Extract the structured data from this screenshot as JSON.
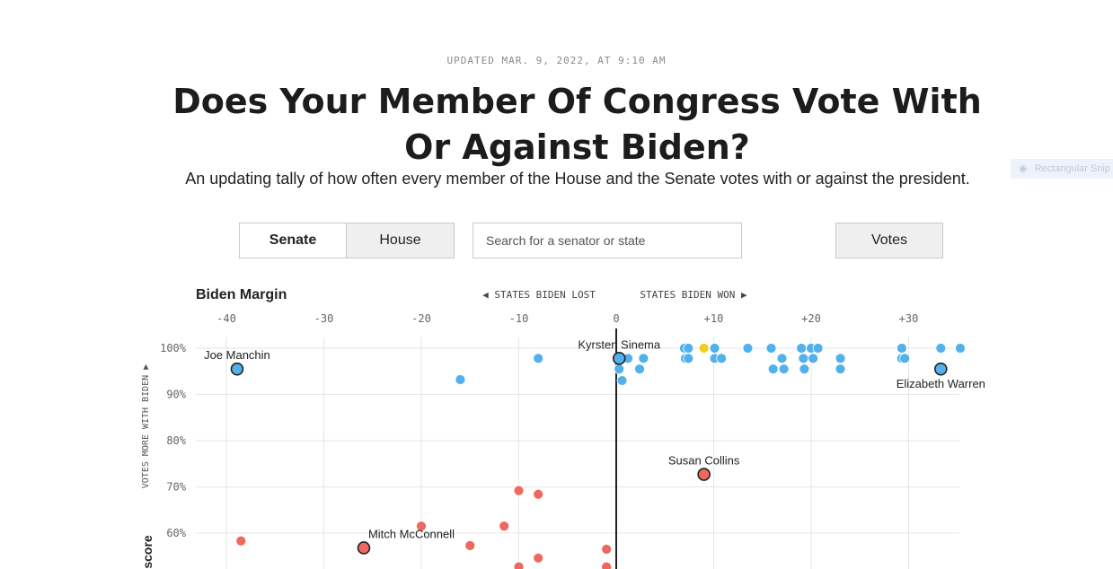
{
  "header": {
    "updated": "UPDATED MAR. 9, 2022, AT 9:10 AM",
    "title": "Does Your Member Of Congress Vote With Or Against Biden?",
    "subtitle": "An updating tally of how often every member of the House and the Senate votes with or against the president."
  },
  "overlay": {
    "snip_label": "Rectangular Snip"
  },
  "controls": {
    "senate_label": "Senate",
    "house_label": "House",
    "search_placeholder": "Search for a senator or state",
    "votes_label": "Votes"
  },
  "chart_data": {
    "type": "scatter",
    "title": "Biden Margin",
    "direction_left": "◀ STATES BIDEN LOST",
    "direction_right": "STATES BIDEN WON ▶",
    "ylabel": "VOTES MORE WITH BIDEN ▶",
    "ylabel_bottom": "score",
    "xlim": [
      -43,
      35
    ],
    "ylim": [
      50,
      102
    ],
    "x_ticks": [
      {
        "value": -40,
        "label": "-40"
      },
      {
        "value": -30,
        "label": "-30"
      },
      {
        "value": -20,
        "label": "-20"
      },
      {
        "value": -10,
        "label": "-10"
      },
      {
        "value": 0,
        "label": "0"
      },
      {
        "value": 10,
        "label": "+10"
      },
      {
        "value": 20,
        "label": "+20"
      },
      {
        "value": 30,
        "label": "+30"
      }
    ],
    "y_ticks": [
      {
        "value": 100,
        "label": "100%"
      },
      {
        "value": 90,
        "label": "90%"
      },
      {
        "value": 80,
        "label": "80%"
      },
      {
        "value": 70,
        "label": "70%"
      },
      {
        "value": 60,
        "label": "60%"
      }
    ],
    "colors": {
      "democrat": "#52b0ea",
      "independent": "#f0cf1e",
      "republican": "#f0675e"
    },
    "series": [
      {
        "name": "Democrat",
        "color": "#52b0ea",
        "points": [
          {
            "x": -8,
            "y": 97.8
          },
          {
            "x": -16,
            "y": 93.2
          },
          {
            "x": 0.3,
            "y": 95.5
          },
          {
            "x": 0.6,
            "y": 93.0
          },
          {
            "x": 1.2,
            "y": 97.8
          },
          {
            "x": 2.4,
            "y": 95.5
          },
          {
            "x": 2.8,
            "y": 97.8
          },
          {
            "x": 7.0,
            "y": 100
          },
          {
            "x": 7.4,
            "y": 100
          },
          {
            "x": 7.1,
            "y": 97.8
          },
          {
            "x": 7.4,
            "y": 97.8
          },
          {
            "x": 10.1,
            "y": 100
          },
          {
            "x": 10.1,
            "y": 97.8
          },
          {
            "x": 10.8,
            "y": 97.8
          },
          {
            "x": 13.5,
            "y": 100
          },
          {
            "x": 15.9,
            "y": 100
          },
          {
            "x": 16.1,
            "y": 95.5
          },
          {
            "x": 17.0,
            "y": 97.8
          },
          {
            "x": 17.2,
            "y": 95.5
          },
          {
            "x": 19.0,
            "y": 100
          },
          {
            "x": 19.2,
            "y": 97.8
          },
          {
            "x": 19.3,
            "y": 95.5
          },
          {
            "x": 20.0,
            "y": 100
          },
          {
            "x": 20.7,
            "y": 100
          },
          {
            "x": 20.2,
            "y": 97.8
          },
          {
            "x": 23.0,
            "y": 97.8
          },
          {
            "x": 23.0,
            "y": 95.5
          },
          {
            "x": 29.3,
            "y": 100
          },
          {
            "x": 29.3,
            "y": 97.8
          },
          {
            "x": 29.6,
            "y": 97.8
          },
          {
            "x": 33.3,
            "y": 100
          },
          {
            "x": 35.3,
            "y": 100
          }
        ]
      },
      {
        "name": "Independent",
        "color": "#f0cf1e",
        "points": [
          {
            "x": 9.0,
            "y": 100
          }
        ]
      },
      {
        "name": "Republican",
        "color": "#f0675e",
        "points": [
          {
            "x": -10,
            "y": 69.2
          },
          {
            "x": -8,
            "y": 68.4
          },
          {
            "x": -20,
            "y": 61.5
          },
          {
            "x": -11.5,
            "y": 61.5
          },
          {
            "x": -38.5,
            "y": 58.3
          },
          {
            "x": -15,
            "y": 57.3
          },
          {
            "x": -1,
            "y": 56.5
          },
          {
            "x": -8,
            "y": 54.6
          },
          {
            "x": -10,
            "y": 52.7
          },
          {
            "x": -1,
            "y": 52.7
          }
        ]
      }
    ],
    "labeled": [
      {
        "name": "Joe Manchin",
        "x": -38.9,
        "y": 95.5,
        "party": "democrat",
        "anchor": "middle",
        "position": "above"
      },
      {
        "name": "Kyrsten Sinema",
        "x": 0.3,
        "y": 97.8,
        "party": "democrat",
        "anchor": "middle",
        "position": "above"
      },
      {
        "name": "Elizabeth Warren",
        "x": 33.3,
        "y": 95.5,
        "party": "democrat",
        "anchor": "middle",
        "position": "below"
      },
      {
        "name": "Susan Collins",
        "x": 9.0,
        "y": 72.7,
        "party": "republican",
        "anchor": "middle",
        "position": "above"
      },
      {
        "name": "Mitch McConnell",
        "x": -25.9,
        "y": 56.8,
        "party": "republican",
        "anchor": "end",
        "position": "above"
      }
    ]
  }
}
